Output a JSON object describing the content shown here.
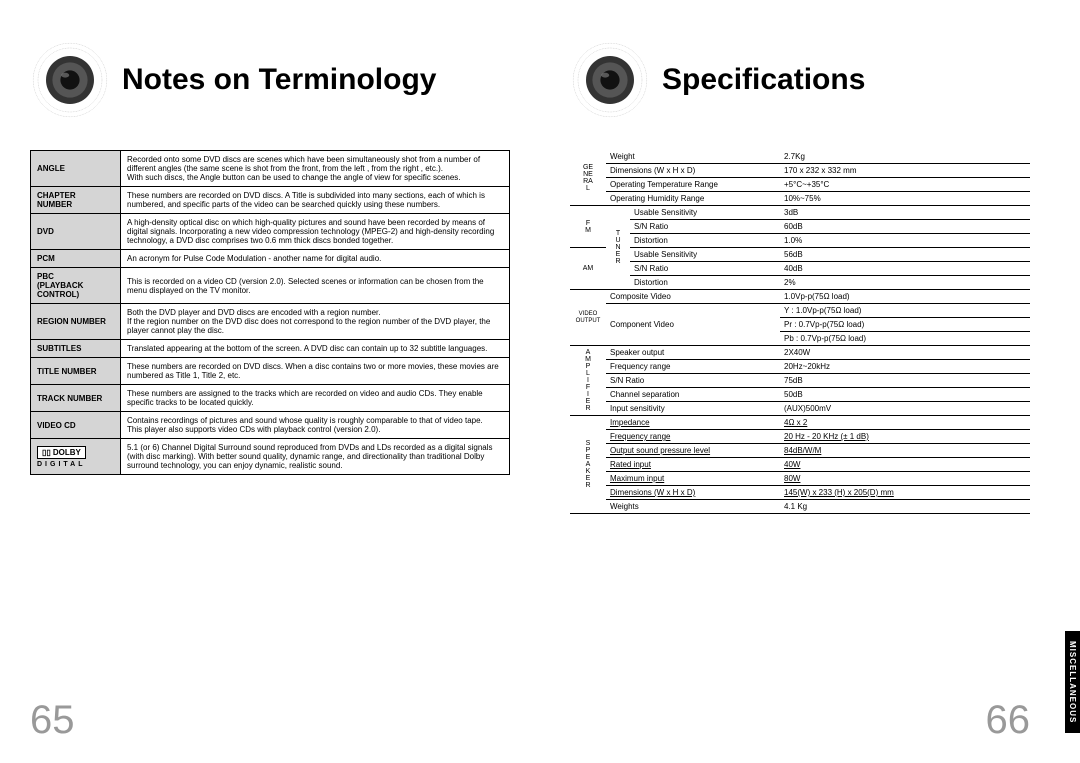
{
  "left": {
    "title": "Notes on Terminology",
    "page_num": "65",
    "terms": [
      {
        "label": "ANGLE",
        "desc": "Recorded onto some DVD discs are scenes which have been simultaneously shot from a number of different angles (the same scene is shot from the front, from the left , from the right , etc.).\nWith such discs, the Angle button can be used to change the angle of view for specific scenes."
      },
      {
        "label": "CHAPTER NUMBER",
        "desc": "These numbers are recorded on DVD discs. A Title is subdivided into many sections, each of which is numbered, and specific parts of the video can be searched quickly using these numbers."
      },
      {
        "label": "DVD",
        "desc": "A high-density optical disc on which high-quality pictures and sound have been recorded by means of digital signals. Incorporating a new video compression technology (MPEG-2) and high-density recording technology, a DVD disc comprises  two 0.6 mm thick discs bonded together."
      },
      {
        "label": "PCM",
        "desc": "An acronym for Pulse Code Modulation - another name for digital audio."
      },
      {
        "label": "PBC (PLAYBACK CONTROL)",
        "desc": "This is recorded on a video CD (version 2.0). Selected scenes or information can be chosen from the menu displayed on the TV monitor."
      },
      {
        "label": "REGION NUMBER",
        "desc": "Both the DVD player and DVD discs are encoded with a region number.\nIf the region number on the DVD disc does not correspond to the region number of the DVD player, the player cannot play the disc."
      },
      {
        "label": "SUBTITLES",
        "desc": "Translated appearing at the bottom of the screen. A DVD disc can contain up to 32 subtitle languages."
      },
      {
        "label": "TITLE NUMBER",
        "desc": "These numbers are recorded on DVD discs.  When a disc contains two or more movies, these movies are numbered as Title 1, Title 2, etc."
      },
      {
        "label": "TRACK NUMBER",
        "desc": "These numbers are assigned to the tracks which are recorded on video and audio CDs. They enable specific tracks to be located quickly."
      },
      {
        "label": "VIDEO CD",
        "desc": "Contains recordings of pictures and sound whose quality is roughly comparable to that of video tape.\nThis player also supports video CDs with playback control (version 2.0)."
      },
      {
        "label": "DOLBY",
        "desc": "5.1 (or 6) Channel Digital Surround sound reproduced from DVDs and LDs recorded as a digital signals (with        disc marking). With better sound quality, dynamic range, and directionality than traditional Dolby surround technology, you can enjoy dynamic, realistic sound."
      }
    ]
  },
  "right": {
    "title": "Specifications",
    "page_num": "66",
    "side_tab": "MISCELLANEOUS",
    "specs": {
      "general": {
        "cat": "GE\nNE\nRA\nL",
        "rows": [
          {
            "label": "Weight",
            "value": "2.7Kg"
          },
          {
            "label": "Dimensions (W x H x D)",
            "value": "170 x 232 x 332 mm"
          },
          {
            "label": "Operating Temperature Range",
            "value": "+5°C~+35°C"
          },
          {
            "label": "Operating Humidity Range",
            "value": "10%~75%"
          }
        ]
      },
      "fm": {
        "cat": "F\nM",
        "sub": "T\nU\nN\nE\nR",
        "rows": [
          {
            "label": "Usable Sensitivity",
            "value": "3dB"
          },
          {
            "label": "S/N Ratio",
            "value": "60dB"
          },
          {
            "label": "Distortion",
            "value": "1.0%"
          }
        ]
      },
      "am": {
        "cat": "AM",
        "sub": "T\nU\nN\nE\nR",
        "rows": [
          {
            "label": "Usable Sensitivity",
            "value": "56dB"
          },
          {
            "label": "S/N Ratio",
            "value": "40dB"
          },
          {
            "label": "Distortion",
            "value": "2%"
          }
        ]
      },
      "video": {
        "cat": "VIDEO\nOUTPUT",
        "rows": [
          {
            "label": "Composite Video",
            "value": "1.0Vp-p(75Ω load)"
          },
          {
            "label": "Component Video",
            "value": "Y : 1.0Vp-p(75Ω load)",
            "rowspan": 3
          },
          {
            "label": "",
            "value": "Pr : 0.7Vp-p(75Ω load)"
          },
          {
            "label": "",
            "value": "Pb : 0.7Vp-p(75Ω load)"
          }
        ]
      },
      "amp": {
        "cat": "A\nM\nP\nL\nI\nF\nI\nE\nR",
        "rows": [
          {
            "label": "Speaker output",
            "value": "2X40W"
          },
          {
            "label": "Frequency range",
            "value": "20Hz~20kHz"
          },
          {
            "label": "S/N Ratio",
            "value": "75dB"
          },
          {
            "label": "Channel separation",
            "value": "50dB"
          },
          {
            "label": "Input sensitivity",
            "value": "(AUX)500mV"
          }
        ]
      },
      "speaker": {
        "cat": "S\nP\nE\nA\nK\nE\nR",
        "rows": [
          {
            "label": "Impedance",
            "value": "4Ω x 2",
            "u": true
          },
          {
            "label": "Frequency range",
            "value": "20 Hz - 20 KHz (± 1 dB)",
            "u": true
          },
          {
            "label": "Output sound pressure level",
            "value": "84dB/W/M",
            "u": true
          },
          {
            "label": "Rated input",
            "value": "40W",
            "u": true
          },
          {
            "label": "Maximum input",
            "value": "80W",
            "u": true
          },
          {
            "label": "Dimensions  (W x H x D)",
            "value": "145(W) x 233 (H) x 205(D) mm",
            "u": true
          },
          {
            "label": "Weights",
            "value": "4.1 Kg"
          }
        ]
      }
    }
  }
}
